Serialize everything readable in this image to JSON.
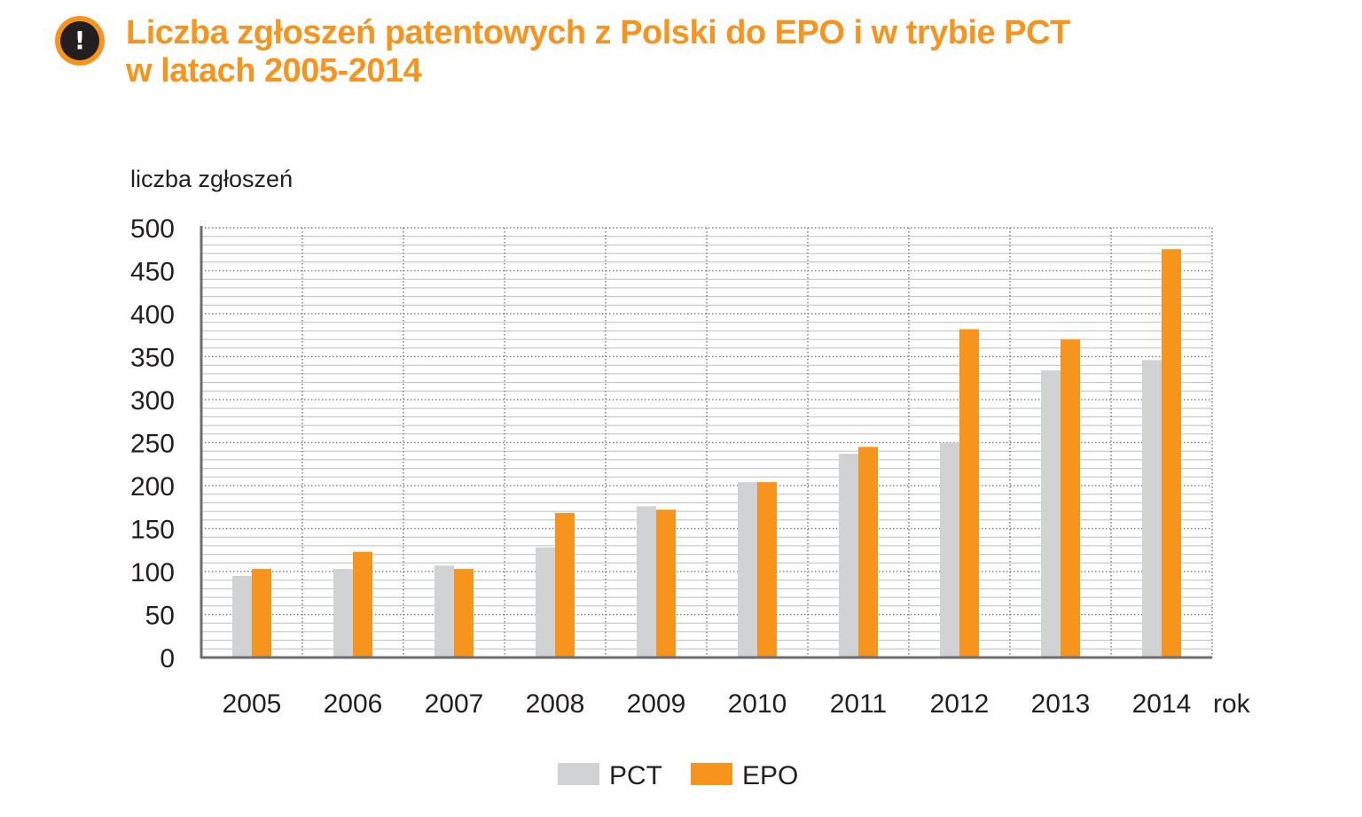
{
  "header": {
    "icon": "exclamation-icon",
    "icon_glyph": "!",
    "title_line1": "Liczba zgłoszeń patentowych z Polski do EPO i w trybie PCT",
    "title_line2": "w latach 2005-2014"
  },
  "colors": {
    "accent": "#f7941d",
    "pct": "#d1d2d4",
    "epo": "#f7941d",
    "axis": "#6d6e71",
    "text": "#231f20"
  },
  "chart_data": {
    "type": "bar",
    "ylabel": "liczba zgłoszeń",
    "xlabel": "rok",
    "ylim": [
      0,
      500
    ],
    "yticks": [
      0,
      50,
      100,
      150,
      200,
      250,
      300,
      350,
      400,
      450,
      500
    ],
    "grid": true,
    "legend_position": "bottom",
    "categories": [
      "2005",
      "2006",
      "2007",
      "2008",
      "2009",
      "2010",
      "2011",
      "2012",
      "2013",
      "2014"
    ],
    "series": [
      {
        "name": "PCT",
        "values": [
          95,
          103,
          107,
          128,
          176,
          204,
          237,
          250,
          334,
          346
        ]
      },
      {
        "name": "EPO",
        "values": [
          103,
          123,
          103,
          168,
          172,
          204,
          245,
          382,
          370,
          475
        ]
      }
    ]
  }
}
